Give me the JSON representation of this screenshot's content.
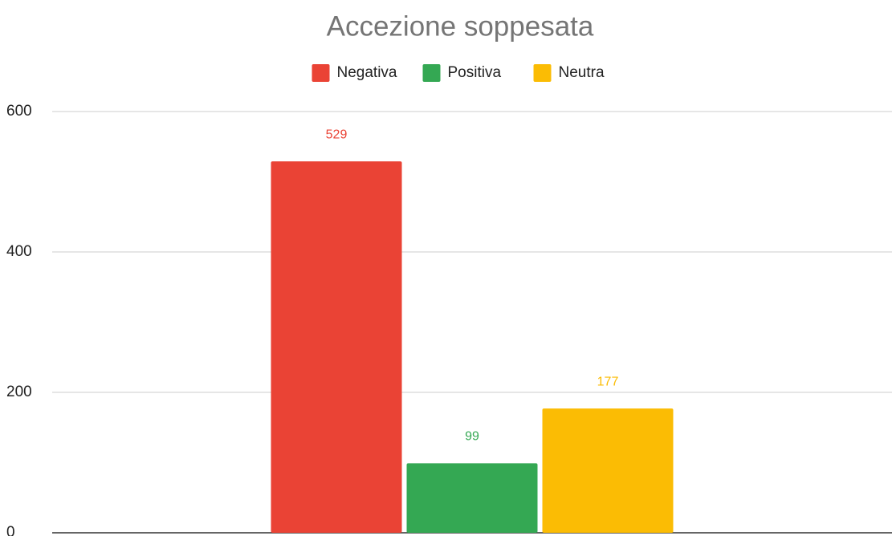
{
  "chart_data": {
    "type": "bar",
    "title": "Accezione soppesata",
    "categories": [
      null
    ],
    "series": [
      {
        "name": "Negativa",
        "color": "#ea4335",
        "values": [
          529
        ]
      },
      {
        "name": "Positiva",
        "color": "#34a853",
        "values": [
          99
        ]
      },
      {
        "name": "Neutra",
        "color": "#fbbc04",
        "values": [
          177
        ]
      }
    ],
    "ylim": [
      0,
      600
    ],
    "yticks": [
      0,
      200,
      400,
      600
    ],
    "grid": true,
    "legend": "top"
  }
}
